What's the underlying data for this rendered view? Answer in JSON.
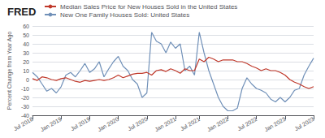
{
  "chart_data": {
    "type": "line",
    "title": "FRED",
    "ylabel": "Percent Change from Year Ago",
    "categories": [
      "Jul 2018",
      null,
      null,
      null,
      null,
      null,
      "Jan 2019",
      null,
      null,
      null,
      null,
      null,
      "Jul 2019",
      null,
      null,
      null,
      null,
      null,
      "Jan 2020",
      null,
      null,
      null,
      null,
      null,
      "Jul 2020",
      null,
      null,
      null,
      null,
      null,
      "Jan 2021",
      null,
      null,
      null,
      null,
      "Jul 2021",
      null,
      null,
      null,
      null,
      null,
      "Jan 2022",
      null,
      null,
      null,
      null,
      null,
      "Jul 2022",
      null,
      null,
      null,
      null,
      null,
      "Jan 2023",
      null,
      null,
      null,
      null,
      null,
      "Jul 2023"
    ],
    "series": [
      {
        "name": "Median Sales Price for New Houses Sold in the United States",
        "color": "#c0392b",
        "values": [
          1,
          -1,
          3,
          2,
          0,
          -1,
          1,
          2,
          0,
          -2,
          -3,
          -1,
          -2,
          -1,
          0,
          -1,
          0,
          2,
          5,
          2,
          4,
          6,
          7,
          7,
          8,
          5,
          10,
          11,
          9,
          12,
          10,
          7,
          12,
          10,
          10,
          23,
          20,
          25,
          23,
          20,
          22,
          22,
          22,
          20,
          20,
          18,
          15,
          13,
          10,
          12,
          10,
          10,
          8,
          5,
          0,
          -3,
          -5,
          -8,
          -10,
          -8
        ]
      },
      {
        "name": "New One Family Houses Sold: United States",
        "color": "#7090b8",
        "values": [
          8,
          3,
          -5,
          -13,
          -10,
          -15,
          -8,
          5,
          8,
          3,
          10,
          18,
          8,
          12,
          20,
          3,
          12,
          20,
          26,
          15,
          10,
          0,
          -5,
          -20,
          -15,
          53,
          43,
          40,
          30,
          42,
          35,
          40,
          10,
          15,
          5,
          53,
          30,
          10,
          -5,
          -20,
          -30,
          -35,
          -35,
          -32,
          -10,
          2,
          -5,
          -10,
          -12,
          -15,
          -22,
          -25,
          -20,
          -25,
          -20,
          -12,
          -10,
          5,
          15,
          24
        ]
      }
    ],
    "ylim": [
      -40,
      60
    ],
    "yticks": [
      -40,
      -30,
      -20,
      -10,
      0,
      10,
      20,
      30,
      40,
      50,
      60
    ],
    "grid": true,
    "legend": "upper left"
  }
}
